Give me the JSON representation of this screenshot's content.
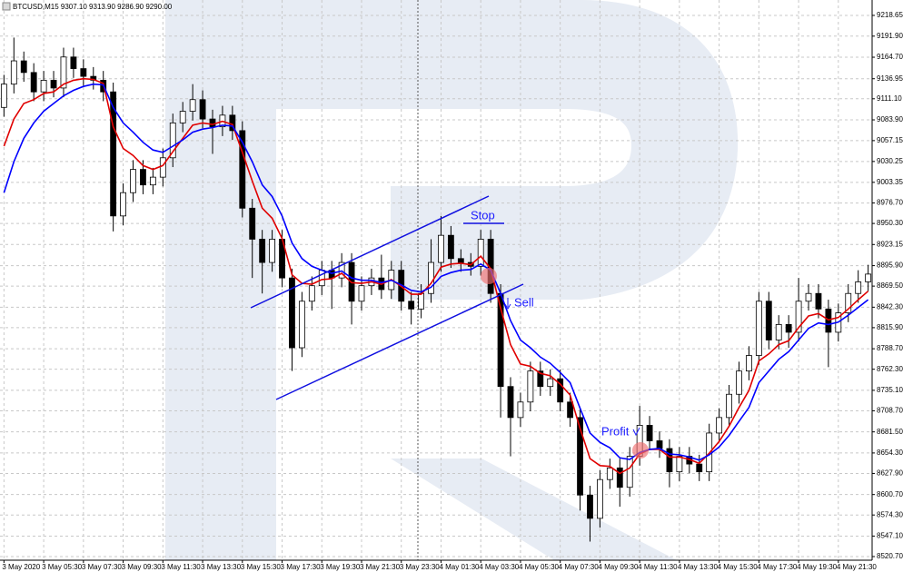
{
  "chart_data": {
    "type": "candlestick",
    "title": "BTCUSD,M15  9307.10 9313.90 9286.90 9290.00",
    "open": [
      9100,
      9130,
      9160,
      9145,
      9120,
      9135,
      9125,
      9165,
      9150,
      9140,
      9135,
      9120,
      8960,
      8990,
      9020,
      9000,
      9010,
      9035,
      9080,
      9095,
      9110,
      9085,
      9075,
      9090,
      9070,
      8970,
      8930,
      8900,
      8930,
      8880,
      8790,
      8850,
      8870,
      8890,
      8880,
      8900,
      8850,
      8870,
      8880,
      8865,
      8890,
      8850,
      8840,
      8860,
      8900,
      8935,
      8905,
      8900,
      8895,
      8930,
      8860,
      8740,
      8700,
      8720,
      8760,
      8740,
      8750,
      8720,
      8700,
      8600,
      8570,
      8620,
      8635,
      8610,
      8650,
      8690,
      8670,
      8660,
      8630,
      8650,
      8640,
      8630,
      8680,
      8700,
      8730,
      8760,
      8780,
      8850,
      8800,
      8820,
      8810,
      8850,
      8860,
      8840,
      8810,
      8835,
      8860,
      8875
    ],
    "high": [
      9142,
      9190,
      9172,
      9157,
      9147,
      9147,
      9177,
      9177,
      9162,
      9152,
      9147,
      9132,
      9002,
      9032,
      9032,
      9022,
      9047,
      9092,
      9107,
      9130,
      9122,
      9097,
      9102,
      9102,
      9082,
      8982,
      8942,
      8942,
      8942,
      8892,
      8862,
      8882,
      8902,
      8902,
      8912,
      8912,
      8882,
      8892,
      8910,
      8902,
      8902,
      8862,
      8872,
      8930,
      8960,
      8947,
      8917,
      8912,
      8942,
      8942,
      8872,
      8752,
      8732,
      8772,
      8772,
      8762,
      8762,
      8732,
      8712,
      8612,
      8632,
      8647,
      8647,
      8662,
      8715,
      8702,
      8682,
      8672,
      8662,
      8662,
      8652,
      8692,
      8712,
      8742,
      8772,
      8792,
      8862,
      8862,
      8832,
      8832,
      8880,
      8872,
      8872,
      8852,
      8847,
      8872,
      8890,
      8897
    ],
    "low": [
      9088,
      9118,
      9133,
      9108,
      9108,
      9113,
      9113,
      9138,
      9128,
      9123,
      9108,
      8940,
      8948,
      8978,
      8988,
      8988,
      8998,
      9023,
      9068,
      9083,
      9073,
      9040,
      9063,
      9058,
      8958,
      8880,
      8860,
      8888,
      8868,
      8760,
      8778,
      8838,
      8858,
      8840,
      8868,
      8820,
      8838,
      8858,
      8853,
      8853,
      8838,
      8820,
      8828,
      8848,
      8888,
      8893,
      8888,
      8883,
      8883,
      8848,
      8700,
      8650,
      8688,
      8708,
      8728,
      8728,
      8708,
      8688,
      8580,
      8540,
      8558,
      8608,
      8585,
      8598,
      8638,
      8658,
      8648,
      8610,
      8618,
      8628,
      8618,
      8618,
      8668,
      8688,
      8718,
      8748,
      8768,
      8788,
      8788,
      8790,
      8798,
      8838,
      8828,
      8765,
      8798,
      8823,
      8848,
      8863
    ],
    "close": [
      9130,
      9160,
      9145,
      9120,
      9135,
      9125,
      9165,
      9150,
      9140,
      9135,
      9120,
      8960,
      8990,
      9020,
      9000,
      9010,
      9035,
      9080,
      9095,
      9110,
      9085,
      9075,
      9090,
      9070,
      8970,
      8930,
      8900,
      8930,
      8880,
      8790,
      8850,
      8870,
      8890,
      8880,
      8900,
      8850,
      8870,
      8880,
      8865,
      8890,
      8850,
      8840,
      8860,
      8900,
      8935,
      8905,
      8900,
      8895,
      8930,
      8860,
      8740,
      8700,
      8720,
      8760,
      8740,
      8750,
      8720,
      8700,
      8600,
      8570,
      8620,
      8635,
      8610,
      8650,
      8690,
      8670,
      8660,
      8630,
      8650,
      8640,
      8630,
      8680,
      8700,
      8730,
      8760,
      8780,
      8850,
      8800,
      8820,
      8810,
      8850,
      8860,
      8840,
      8810,
      8835,
      8860,
      8875,
      8885
    ],
    "up_color": "#ffffff",
    "down_color": "#000000",
    "series": [
      {
        "color": "#e00000",
        "values": [
          9050,
          9085,
          9105,
          9110,
          9118,
          9120,
          9130,
          9135,
          9137,
          9136,
          9131,
          9075,
          9047,
          9038,
          9025,
          9020,
          9025,
          9043,
          9060,
          9077,
          9080,
          9078,
          9082,
          9078,
          9042,
          9005,
          8970,
          8957,
          8931,
          8884,
          8873,
          8872,
          8878,
          8879,
          8886,
          8874,
          8873,
          8875,
          8872,
          8878,
          8869,
          8859,
          8859,
          8873,
          8894,
          8898,
          8899,
          8897,
          8908,
          8892,
          8841,
          8794,
          8769,
          8766,
          8757,
          8754,
          8743,
          8729,
          8686,
          8647,
          8638,
          8637,
          8628,
          8635,
          8653,
          8659,
          8659,
          8649,
          8649,
          8646,
          8641,
          8654,
          8669,
          8689,
          8713,
          8735,
          8773,
          8782,
          8794,
          8799,
          8816,
          8831,
          8834,
          8826,
          8829,
          8840,
          8852,
          8863
        ]
      },
      {
        "color": "#0000ff",
        "values": [
          8990,
          9030,
          9060,
          9080,
          9095,
          9105,
          9115,
          9122,
          9127,
          9130,
          9129,
          9100,
          9080,
          9068,
          9055,
          9045,
          9042,
          9050,
          9058,
          9068,
          9072,
          9074,
          9077,
          9076,
          9055,
          9030,
          9000,
          8985,
          8960,
          8925,
          8905,
          8895,
          8890,
          8886,
          8889,
          8880,
          8877,
          8877,
          8874,
          8877,
          8871,
          8864,
          8862,
          8868,
          8882,
          8887,
          8890,
          8891,
          8898,
          8890,
          8860,
          8825,
          8800,
          8790,
          8778,
          8770,
          8758,
          8745,
          8712,
          8680,
          8668,
          8661,
          8648,
          8646,
          8655,
          8659,
          8660,
          8653,
          8652,
          8649,
          8645,
          8652,
          8662,
          8677,
          8695,
          8713,
          8745,
          8760,
          8775,
          8785,
          8800,
          8815,
          8822,
          8820,
          8823,
          8832,
          8842,
          8852
        ]
      }
    ],
    "ylim": [
      8516,
      9238.5
    ],
    "yticks": [
      9218.65,
      {
        "value": 9191.9,
        "label": "9191.90"
      },
      {
        "value": 9164.7,
        "label": "9164.70"
      },
      9136.95,
      {
        "value": 9111.1,
        "label": "9111.10"
      },
      {
        "value": 9083.9,
        "label": "9083.90"
      },
      9057.15,
      9030.25,
      9003.35,
      {
        "value": 8976.7,
        "label": "8976.70"
      },
      {
        "value": 8950.3,
        "label": "8950.30"
      },
      8923.15,
      {
        "value": 8895.9,
        "label": "8895.90"
      },
      {
        "value": 8869.5,
        "label": "8869.50"
      },
      {
        "value": 8842.3,
        "label": "8842.30"
      },
      {
        "value": 8815.9,
        "label": "8815.90"
      },
      {
        "value": 8788.7,
        "label": "8788.70"
      },
      {
        "value": 8762.3,
        "label": "8762.30"
      },
      {
        "value": 8735.1,
        "label": "8735.10"
      },
      {
        "value": 8708.7,
        "label": "8708.70"
      },
      {
        "value": 8681.5,
        "label": "8681.50"
      },
      {
        "value": 8654.3,
        "label": "8654.30"
      },
      {
        "value": 8627.9,
        "label": "8627.90"
      },
      {
        "value": 8600.7,
        "label": "8600.70"
      },
      {
        "value": 8574.3,
        "label": "8574.30"
      },
      {
        "value": 8547.1,
        "label": "8547.10"
      },
      {
        "value": 8520.7,
        "label": "8520.70"
      }
    ],
    "xlim": [
      -0.4,
      87.4
    ],
    "xticks": [
      {
        "value": 0,
        "label": "3 May 2020"
      },
      {
        "value": 4,
        "label": "3 May 05:30"
      },
      {
        "value": 8,
        "label": "3 May 07:30"
      },
      {
        "value": 12,
        "label": "3 May 09:30"
      },
      {
        "value": 16,
        "label": "3 May 11:30"
      },
      {
        "value": 20,
        "label": "3 May 13:30"
      },
      {
        "value": 24,
        "label": "3 May 15:30"
      },
      {
        "value": 28,
        "label": "3 May 17:30"
      },
      {
        "value": 32,
        "label": "3 May 19:30"
      },
      {
        "value": 36,
        "label": "3 May 21:30"
      },
      {
        "value": 40,
        "label": "3 May 23:30"
      },
      {
        "value": 44,
        "label": "4 May 01:30"
      },
      {
        "value": 48,
        "label": "4 May 03:30"
      },
      {
        "value": 52,
        "label": "4 May 05:30"
      },
      {
        "value": 56,
        "label": "4 May 07:30"
      },
      {
        "value": 60,
        "label": "4 May 09:30"
      },
      {
        "value": 64,
        "label": "4 May 11:30"
      },
      {
        "value": 68,
        "label": "4 May 13:30"
      },
      {
        "value": 72,
        "label": "4 May 15:30"
      },
      {
        "value": 76,
        "label": "4 May 17:30"
      },
      {
        "value": 80,
        "label": "4 May 19:30"
      },
      {
        "value": 84,
        "label": "4 May 21:30"
      }
    ],
    "grid": true,
    "annotations": [
      {
        "text": "Stop"
      },
      {
        "text": "Sell"
      },
      {
        "text": "Profit"
      }
    ]
  }
}
